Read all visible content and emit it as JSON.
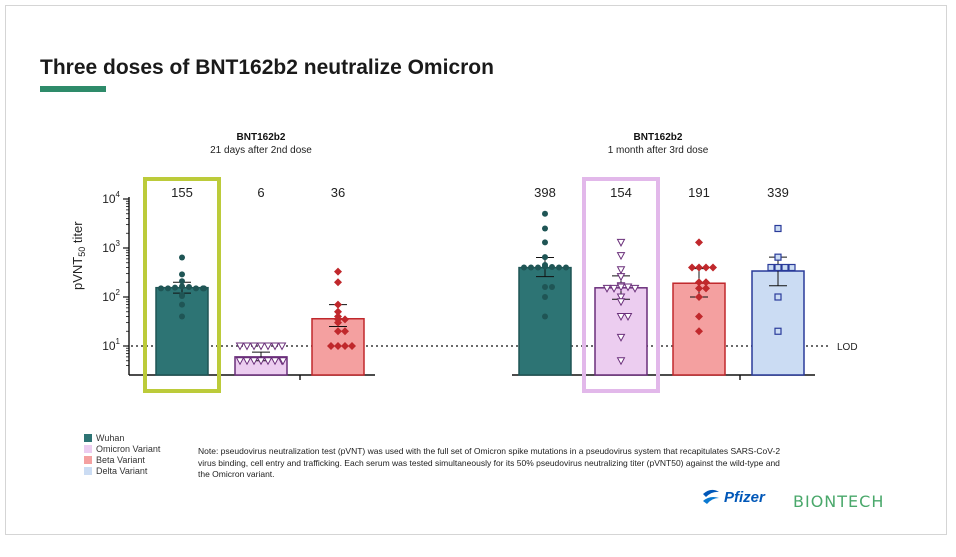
{
  "slide": {
    "title": "Three doses of BNT162b2 neutralize Omicron",
    "accent_color": "#2e8b6a"
  },
  "legend": [
    {
      "label": "Wuhan",
      "color": "#2d7474"
    },
    {
      "label": "Omicron Variant",
      "color": "#eccdf0"
    },
    {
      "label": "Beta Variant",
      "color": "#f4a0a0"
    },
    {
      "label": "Delta Variant",
      "color": "#cbdcf3"
    }
  ],
  "note": "Note: pseudovirus neutralization test (pVNT) was used with the full set of Omicron spike mutations in a pseudovirus system that recapitulates SARS-CoV-2 virus binding, cell entry and trafficking. Each serum was tested simultaneously for its 50% pseudovirus neutralizing titer (pVNT50) against the wild-type and the Omicron variant.",
  "logos": {
    "pfizer": "Pfizer",
    "biontech": "BIONTECH"
  },
  "chart_data": {
    "type": "bar",
    "y_scale": "log",
    "ylim": [
      3,
      10000
    ],
    "ylabel_main": "pVNT",
    "ylabel_sub": "50",
    "ylabel_rest": " titer",
    "y_ticks": [
      {
        "base": "10",
        "exp": "1",
        "value": 10
      },
      {
        "base": "10",
        "exp": "2",
        "value": 100
      },
      {
        "base": "10",
        "exp": "3",
        "value": 1000
      },
      {
        "base": "10",
        "exp": "4",
        "value": 10000
      }
    ],
    "lod": {
      "value": 10,
      "label": "LOD"
    },
    "groups": [
      {
        "title": "BNT162b2",
        "subtitle": "21 days after 2nd dose"
      },
      {
        "title": "BNT162b2",
        "subtitle": "1 month after 3rd dose"
      }
    ],
    "series": [
      {
        "group": 0,
        "name": "Wuhan",
        "value": 155,
        "label": "155",
        "fill": "#2d7474",
        "stroke": "#1f5555",
        "marker": "circle",
        "err": [
          120,
          200
        ],
        "highlight": "#bccb3a",
        "points": [
          640,
          290,
          210,
          165,
          160,
          155,
          150,
          150,
          150,
          150,
          150,
          110,
          105,
          70,
          40
        ]
      },
      {
        "group": 0,
        "name": "Omicron Variant",
        "value": 6,
        "label": "6",
        "fill": "#eccdf0",
        "stroke": "#6a2f7a",
        "marker": "triangle-down",
        "err": [
          5,
          7.5
        ],
        "points": [
          10,
          10,
          10,
          10,
          10,
          10,
          10,
          5,
          5,
          5,
          5,
          5,
          5,
          5,
          5
        ]
      },
      {
        "group": 0,
        "name": "Beta Variant",
        "value": 36,
        "label": "36",
        "fill": "#f4a0a0",
        "stroke": "#c0282c",
        "marker": "diamond",
        "err": [
          25,
          70
        ],
        "points": [
          330,
          200,
          70,
          50,
          40,
          35,
          35,
          30,
          20,
          20,
          10,
          10,
          10,
          10
        ]
      },
      {
        "group": 1,
        "name": "Wuhan",
        "value": 398,
        "label": "398",
        "fill": "#2d7474",
        "stroke": "#1f5555",
        "marker": "circle",
        "err": [
          260,
          640
        ],
        "points": [
          5000,
          2500,
          1300,
          650,
          450,
          420,
          410,
          400,
          400,
          400,
          400,
          400,
          160,
          160,
          100,
          40
        ]
      },
      {
        "group": 1,
        "name": "Omicron Variant",
        "value": 154,
        "label": "154",
        "fill": "#eccdf0",
        "stroke": "#6a2f7a",
        "marker": "triangle-down",
        "err": [
          90,
          270
        ],
        "highlight": "#e2b8ea",
        "points": [
          1300,
          700,
          360,
          260,
          170,
          160,
          160,
          150,
          150,
          150,
          100,
          80,
          40,
          40,
          15,
          5
        ]
      },
      {
        "group": 1,
        "name": "Beta Variant",
        "value": 191,
        "label": "191",
        "fill": "#f4a0a0",
        "stroke": "#c0282c",
        "marker": "diamond",
        "err": [
          100,
          380
        ],
        "points": [
          1300,
          400,
          400,
          400,
          400,
          200,
          200,
          150,
          150,
          100,
          40,
          20
        ]
      },
      {
        "group": 1,
        "name": "Delta Variant",
        "value": 339,
        "label": "339",
        "fill": "#cbdcf3",
        "stroke": "#2a3b9a",
        "marker": "square",
        "err": [
          170,
          650
        ],
        "points": [
          2500,
          650,
          400,
          400,
          400,
          400,
          100,
          20
        ]
      }
    ]
  }
}
